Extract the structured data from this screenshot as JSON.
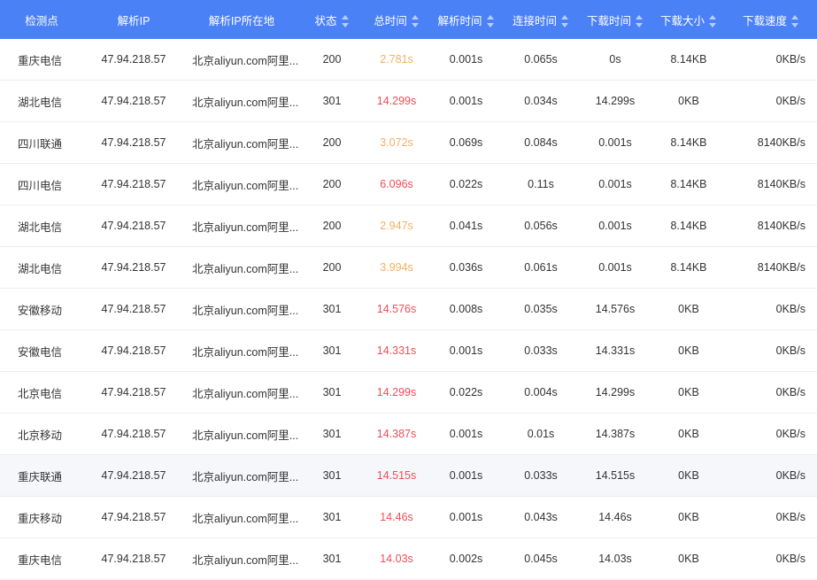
{
  "headers": {
    "location": "检测点",
    "ip": "解析IP",
    "ip_location": "解析IP所在地",
    "status": "状态",
    "total_time": "总时间",
    "resolve_time": "解析时间",
    "connect_time": "连接时间",
    "download_time": "下载时间",
    "download_size": "下载大小",
    "download_speed": "下载速度"
  },
  "colors": {
    "header_bg": "#4b81f7",
    "time_warn": "#f3b064",
    "time_bad": "#ef4d58",
    "highlight_row": "#f5f7fa"
  },
  "rows": [
    {
      "location": "重庆电信",
      "ip": "47.94.218.57",
      "ip_location": "北京aliyun.com阿里...",
      "status": "200",
      "total_time": "2.781s",
      "resolve_time": "0.001s",
      "connect_time": "0.065s",
      "download_time": "0s",
      "download_size": "8.14KB",
      "download_speed": "0KB/s",
      "time_level": "warn"
    },
    {
      "location": "湖北电信",
      "ip": "47.94.218.57",
      "ip_location": "北京aliyun.com阿里...",
      "status": "301",
      "total_time": "14.299s",
      "resolve_time": "0.001s",
      "connect_time": "0.034s",
      "download_time": "14.299s",
      "download_size": "0KB",
      "download_speed": "0KB/s",
      "time_level": "bad"
    },
    {
      "location": "四川联通",
      "ip": "47.94.218.57",
      "ip_location": "北京aliyun.com阿里...",
      "status": "200",
      "total_time": "3.072s",
      "resolve_time": "0.069s",
      "connect_time": "0.084s",
      "download_time": "0.001s",
      "download_size": "8.14KB",
      "download_speed": "8140KB/s",
      "time_level": "warn"
    },
    {
      "location": "四川电信",
      "ip": "47.94.218.57",
      "ip_location": "北京aliyun.com阿里...",
      "status": "200",
      "total_time": "6.096s",
      "resolve_time": "0.022s",
      "connect_time": "0.11s",
      "download_time": "0.001s",
      "download_size": "8.14KB",
      "download_speed": "8140KB/s",
      "time_level": "bad"
    },
    {
      "location": "湖北电信",
      "ip": "47.94.218.57",
      "ip_location": "北京aliyun.com阿里...",
      "status": "200",
      "total_time": "2.947s",
      "resolve_time": "0.041s",
      "connect_time": "0.056s",
      "download_time": "0.001s",
      "download_size": "8.14KB",
      "download_speed": "8140KB/s",
      "time_level": "warn"
    },
    {
      "location": "湖北电信",
      "ip": "47.94.218.57",
      "ip_location": "北京aliyun.com阿里...",
      "status": "200",
      "total_time": "3.994s",
      "resolve_time": "0.036s",
      "connect_time": "0.061s",
      "download_time": "0.001s",
      "download_size": "8.14KB",
      "download_speed": "8140KB/s",
      "time_level": "warn"
    },
    {
      "location": "安徽移动",
      "ip": "47.94.218.57",
      "ip_location": "北京aliyun.com阿里...",
      "status": "301",
      "total_time": "14.576s",
      "resolve_time": "0.008s",
      "connect_time": "0.035s",
      "download_time": "14.576s",
      "download_size": "0KB",
      "download_speed": "0KB/s",
      "time_level": "bad"
    },
    {
      "location": "安徽电信",
      "ip": "47.94.218.57",
      "ip_location": "北京aliyun.com阿里...",
      "status": "301",
      "total_time": "14.331s",
      "resolve_time": "0.001s",
      "connect_time": "0.033s",
      "download_time": "14.331s",
      "download_size": "0KB",
      "download_speed": "0KB/s",
      "time_level": "bad"
    },
    {
      "location": "北京电信",
      "ip": "47.94.218.57",
      "ip_location": "北京aliyun.com阿里...",
      "status": "301",
      "total_time": "14.299s",
      "resolve_time": "0.022s",
      "connect_time": "0.004s",
      "download_time": "14.299s",
      "download_size": "0KB",
      "download_speed": "0KB/s",
      "time_level": "bad"
    },
    {
      "location": "北京移动",
      "ip": "47.94.218.57",
      "ip_location": "北京aliyun.com阿里...",
      "status": "301",
      "total_time": "14.387s",
      "resolve_time": "0.001s",
      "connect_time": "0.01s",
      "download_time": "14.387s",
      "download_size": "0KB",
      "download_speed": "0KB/s",
      "time_level": "bad"
    },
    {
      "location": "重庆联通",
      "ip": "47.94.218.57",
      "ip_location": "北京aliyun.com阿里...",
      "status": "301",
      "total_time": "14.515s",
      "resolve_time": "0.001s",
      "connect_time": "0.033s",
      "download_time": "14.515s",
      "download_size": "0KB",
      "download_speed": "0KB/s",
      "time_level": "bad",
      "highlighted": true
    },
    {
      "location": "重庆移动",
      "ip": "47.94.218.57",
      "ip_location": "北京aliyun.com阿里...",
      "status": "301",
      "total_time": "14.46s",
      "resolve_time": "0.001s",
      "connect_time": "0.043s",
      "download_time": "14.46s",
      "download_size": "0KB",
      "download_speed": "0KB/s",
      "time_level": "bad"
    },
    {
      "location": "重庆电信",
      "ip": "47.94.218.57",
      "ip_location": "北京aliyun.com阿里...",
      "status": "301",
      "total_time": "14.03s",
      "resolve_time": "0.002s",
      "connect_time": "0.045s",
      "download_time": "14.03s",
      "download_size": "0KB",
      "download_speed": "0KB/s",
      "time_level": "bad"
    }
  ]
}
